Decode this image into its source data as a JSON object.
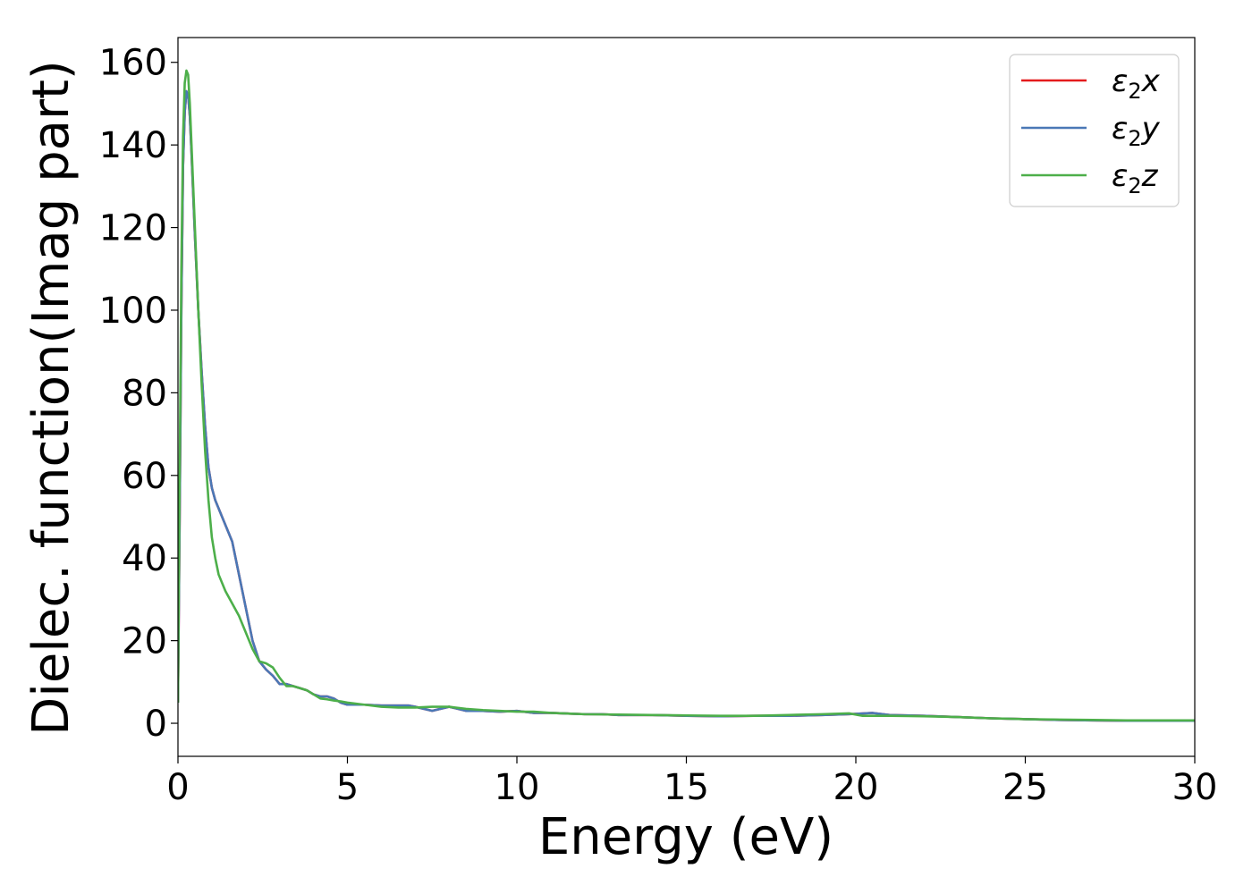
{
  "chart_data": {
    "type": "line",
    "title": "",
    "xlabel": "Energy (eV)",
    "ylabel": "Dielec. function(Imag part)",
    "xlim": [
      0,
      30
    ],
    "ylim": [
      -8,
      166
    ],
    "xticks": [
      "0",
      "5",
      "10",
      "15",
      "20",
      "25",
      "30"
    ],
    "yticks": [
      "0",
      "20",
      "40",
      "60",
      "80",
      "100",
      "120",
      "140",
      "160"
    ],
    "grid": false,
    "legend_position": "top-right",
    "series": [
      {
        "name": "ε₂x",
        "legend_base": "ε",
        "legend_sub": "2",
        "legend_axis": "x",
        "color": "#e41a1c",
        "x": [
          0,
          0.05,
          0.1,
          0.15,
          0.2,
          0.25,
          0.3,
          0.35,
          0.4,
          0.5,
          0.6,
          0.7,
          0.8,
          0.9,
          1.0,
          1.1,
          1.2,
          1.4,
          1.6,
          1.8,
          2.0,
          2.2,
          2.4,
          2.6,
          2.8,
          3.0,
          3.2,
          3.4,
          3.6,
          3.8,
          4.0,
          4.2,
          4.4,
          4.6,
          4.8,
          5.0,
          5.5,
          6.0,
          6.5,
          6.8,
          7.0,
          7.5,
          8.0,
          8.5,
          9.0,
          9.5,
          10.0,
          10.5,
          11.0,
          12.0,
          12.5,
          13.0,
          14.0,
          15.0,
          16.0,
          17.0,
          18.0,
          19.0,
          19.8,
          20.5,
          21.0,
          22.0,
          23.0,
          24.0,
          25.0,
          26.0,
          27.0,
          28.0,
          29.0,
          30.0
        ],
        "values": [
          5,
          50,
          100,
          135,
          148,
          153,
          152,
          147,
          138,
          118,
          100,
          85,
          72,
          62,
          57,
          54,
          52,
          48,
          44,
          36,
          28,
          20,
          15,
          13,
          11.5,
          9.5,
          9.5,
          9,
          8.5,
          8,
          7,
          6.5,
          6.5,
          6,
          5,
          4.5,
          4.5,
          4.3,
          4.3,
          4.3,
          4,
          3,
          4,
          3,
          3,
          2.8,
          3,
          2.5,
          2.5,
          2.2,
          2.2,
          2.0,
          2.0,
          1.8,
          1.7,
          1.8,
          1.8,
          2.0,
          2.2,
          2.5,
          2.0,
          1.8,
          1.5,
          1.2,
          1.0,
          0.8,
          0.7,
          0.6,
          0.6,
          0.6
        ]
      },
      {
        "name": "ε₂y",
        "legend_base": "ε",
        "legend_sub": "2",
        "legend_axis": "y",
        "color": "#4a78b6",
        "x": [
          0,
          0.05,
          0.1,
          0.15,
          0.2,
          0.25,
          0.3,
          0.35,
          0.4,
          0.5,
          0.6,
          0.7,
          0.8,
          0.9,
          1.0,
          1.1,
          1.2,
          1.4,
          1.6,
          1.8,
          2.0,
          2.2,
          2.4,
          2.6,
          2.8,
          3.0,
          3.2,
          3.4,
          3.6,
          3.8,
          4.0,
          4.2,
          4.4,
          4.6,
          4.8,
          5.0,
          5.5,
          6.0,
          6.5,
          6.8,
          7.0,
          7.5,
          8.0,
          8.5,
          9.0,
          9.5,
          10.0,
          10.5,
          11.0,
          12.0,
          12.5,
          13.0,
          14.0,
          15.0,
          16.0,
          17.0,
          18.0,
          19.0,
          19.8,
          20.5,
          21.0,
          22.0,
          23.0,
          24.0,
          25.0,
          26.0,
          27.0,
          28.0,
          29.0,
          30.0
        ],
        "values": [
          5,
          50,
          100,
          135,
          148,
          153,
          152,
          147,
          138,
          118,
          100,
          85,
          72,
          62,
          57,
          54,
          52,
          48,
          44,
          36,
          28,
          20,
          15,
          13,
          11.5,
          9.5,
          9.5,
          9,
          8.5,
          8,
          7,
          6.5,
          6.5,
          6,
          5,
          4.5,
          4.5,
          4.3,
          4.3,
          4.3,
          4,
          3,
          4,
          3,
          3,
          2.8,
          3,
          2.5,
          2.5,
          2.2,
          2.2,
          2.0,
          2.0,
          1.8,
          1.7,
          1.8,
          1.8,
          2.0,
          2.2,
          2.5,
          2.0,
          1.8,
          1.5,
          1.2,
          1.0,
          0.8,
          0.7,
          0.6,
          0.6,
          0.6
        ]
      },
      {
        "name": "ε₂z",
        "legend_base": "ε",
        "legend_sub": "2",
        "legend_axis": "z",
        "color": "#4daf4a",
        "x": [
          0,
          0.05,
          0.1,
          0.15,
          0.2,
          0.25,
          0.3,
          0.35,
          0.4,
          0.5,
          0.6,
          0.7,
          0.8,
          0.9,
          1.0,
          1.1,
          1.2,
          1.4,
          1.6,
          1.8,
          2.0,
          2.2,
          2.4,
          2.6,
          2.8,
          3.0,
          3.2,
          3.4,
          3.6,
          3.8,
          4.0,
          4.2,
          4.4,
          4.6,
          4.8,
          5.0,
          5.5,
          6.0,
          6.5,
          7.0,
          7.5,
          8.0,
          8.5,
          9.0,
          9.5,
          10.0,
          10.5,
          11.0,
          12.0,
          13.0,
          14.0,
          15.0,
          16.0,
          17.0,
          18.0,
          19.0,
          19.8,
          20.2,
          21.0,
          22.0,
          23.0,
          24.0,
          25.0,
          26.0,
          27.0,
          28.0,
          29.0,
          30.0
        ],
        "values": [
          5,
          60,
          110,
          142,
          155,
          158,
          157,
          150,
          140,
          120,
          100,
          82,
          66,
          54,
          45,
          40,
          36,
          32,
          29,
          26,
          22,
          18,
          15,
          14.5,
          13.5,
          11,
          9,
          9,
          8.5,
          8,
          7,
          6,
          5.8,
          5.5,
          5.3,
          5,
          4.5,
          4,
          3.8,
          3.8,
          4.0,
          4,
          3.5,
          3.2,
          3.0,
          2.8,
          2.8,
          2.5,
          2.2,
          2.1,
          2.0,
          1.9,
          1.8,
          1.8,
          2.0,
          2.2,
          2.4,
          1.8,
          1.8,
          1.7,
          1.5,
          1.2,
          1.0,
          0.9,
          0.8,
          0.7,
          0.7,
          0.7
        ]
      }
    ]
  }
}
